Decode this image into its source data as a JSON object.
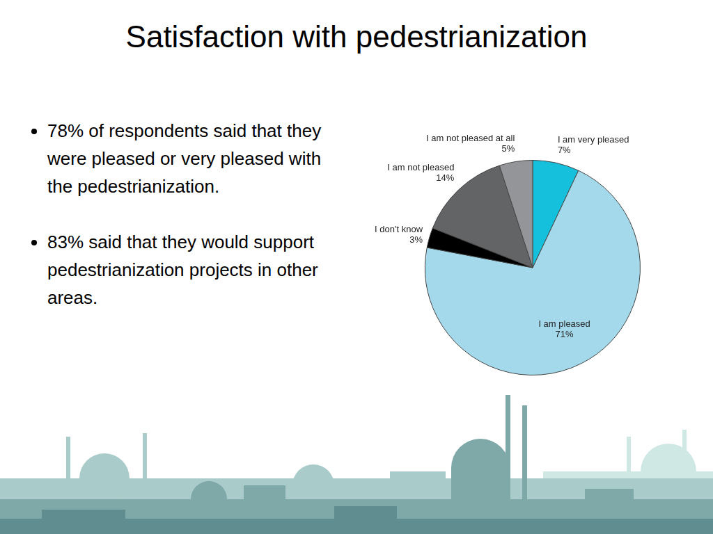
{
  "chart_data": {
    "type": "pie",
    "title": "Satisfaction with pedestrianization",
    "annotations": [
      "78% of respondents said that they were pleased or very pleased with the pedestrianization.",
      "83% said that they would support pedestrianization projects in other areas."
    ],
    "categories": [
      "I am very pleased",
      "I am pleased",
      "I don't know",
      "I am not pleased",
      "I am not pleased at all"
    ],
    "values": [
      7,
      71,
      3,
      14,
      5
    ],
    "value_labels": [
      "7%",
      "71%",
      "3%",
      "14%",
      "5%"
    ],
    "colors": [
      "#14c0dc",
      "#a3d9ea",
      "#000000",
      "#636466",
      "#939598"
    ],
    "data_labels": true
  }
}
